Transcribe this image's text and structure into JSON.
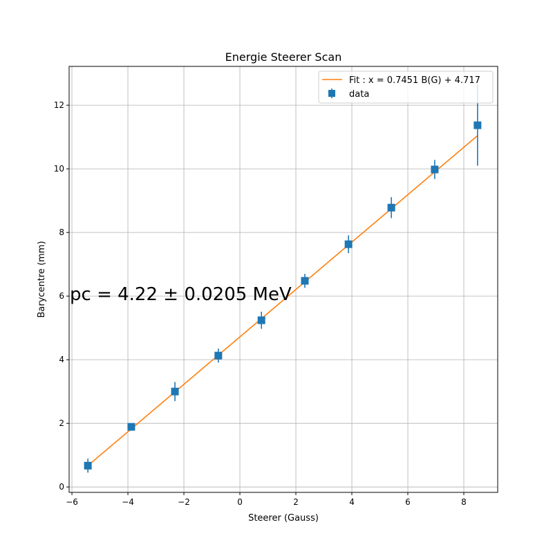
{
  "chart_data": {
    "type": "scatter",
    "title": "Energie Steerer Scan",
    "xlabel": "Steerer (Gauss)",
    "ylabel": "Barycentre (mm)",
    "xlim": [
      -6.1,
      9.21
    ],
    "ylim": [
      -0.17,
      13.22
    ],
    "xticks": [
      -6,
      -4,
      -2,
      0,
      2,
      4,
      6,
      8
    ],
    "yticks": [
      0,
      2,
      4,
      6,
      8,
      10,
      12
    ],
    "grid": true,
    "legend_position": "top-right",
    "annotation": "pc = 4.22 ±  0.0205 MeV",
    "series": [
      {
        "name": "data",
        "kind": "errorbar",
        "color": "#1f77b4",
        "x": [
          -5.43,
          -3.88,
          -2.32,
          -0.77,
          0.77,
          2.32,
          3.88,
          5.41,
          6.96,
          8.49
        ],
        "y": [
          0.67,
          1.89,
          3.0,
          4.13,
          5.24,
          6.48,
          7.63,
          8.78,
          9.98,
          11.37
        ],
        "yerr": [
          0.22,
          0.1,
          0.3,
          0.22,
          0.27,
          0.22,
          0.28,
          0.33,
          0.3,
          1.27
        ]
      },
      {
        "name": "Fit : x = 0.7451 B(G) + 4.717",
        "kind": "line",
        "color": "#ff7f0e",
        "slope": 0.7451,
        "intercept": 4.717,
        "x_range": [
          -5.43,
          8.49
        ]
      }
    ]
  }
}
